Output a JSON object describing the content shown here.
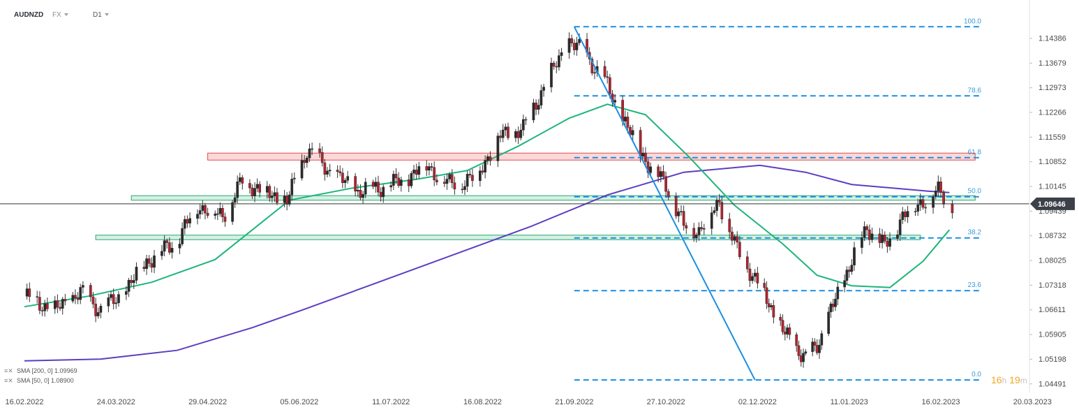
{
  "header": {
    "symbol": "AUDNZD",
    "market": "FX",
    "timeframe": "D1"
  },
  "indicators": [
    {
      "label": "SMA [200, 0]",
      "value": "1.09969",
      "color": "#5c3ec2"
    },
    {
      "label": "SMA [50, 0]",
      "value": "1.08900",
      "color": "#1db57a"
    }
  ],
  "timer": {
    "hours": "16",
    "h_unit": "h",
    "minutes": "19",
    "m_unit": "m"
  },
  "current_price": {
    "label": "1.09646",
    "value": 1.09646
  },
  "chart_data": {
    "type": "candlestick",
    "y_ticks": [
      "1.14386",
      "1.13679",
      "1.12973",
      "1.12266",
      "1.11559",
      "1.10852",
      "1.10145",
      "1.09439",
      "1.08732",
      "1.08025",
      "1.07318",
      "1.06611",
      "1.05905",
      "1.05198",
      "1.04491"
    ],
    "ylim": [
      1.0435,
      1.151
    ],
    "x_ticks": [
      "16.02.2022",
      "24.03.2022",
      "29.04.2022",
      "05.06.2022",
      "11.07.2022",
      "16.08.2022",
      "21.09.2022",
      "27.10.2022",
      "02.12.2022",
      "11.01.2023",
      "16.02.2023",
      "20.03.2023"
    ],
    "fibonacci": [
      {
        "label": "100.0",
        "price": 1.1472
      },
      {
        "label": "78.6",
        "price": 1.1274
      },
      {
        "label": "61.8",
        "price": 1.1097
      },
      {
        "label": "50.0",
        "price": 1.0985
      },
      {
        "label": "38.2",
        "price": 1.0867
      },
      {
        "label": "23.6",
        "price": 1.0716
      },
      {
        "label": "0.0",
        "price": 1.046
      }
    ],
    "zones": [
      {
        "type": "resistance",
        "from": "2022-04-29",
        "to": "2023-02-28",
        "low": 1.109,
        "high": 1.111,
        "color": "#e34b4b"
      },
      {
        "type": "support",
        "from": "2022-03-30",
        "to": "2023-02-28",
        "low": 1.0975,
        "high": 1.0988,
        "color": "#2ea66b"
      },
      {
        "type": "support",
        "from": "2022-03-16",
        "to": "2023-02-08",
        "low": 1.0862,
        "high": 1.0875,
        "color": "#2ea66b"
      }
    ],
    "trendline": {
      "from": [
        "2022-09-21",
        1.1472
      ],
      "to": [
        "2022-12-01",
        1.046
      ],
      "color": "#1a8fe3"
    },
    "ohlc": []
  }
}
